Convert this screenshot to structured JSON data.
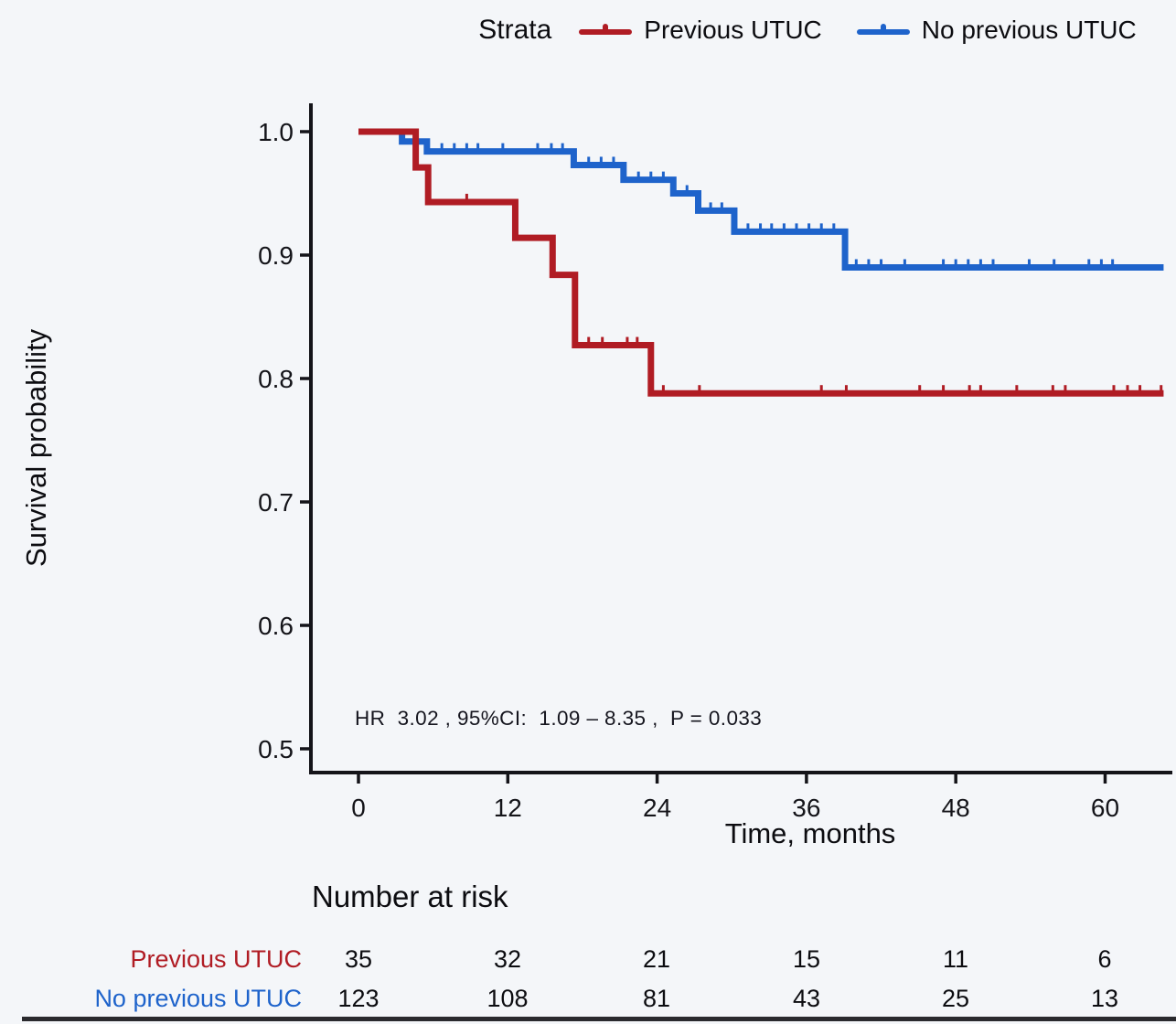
{
  "legend": {
    "title": "Strata",
    "items": [
      {
        "label": "Previous UTUC",
        "color": "#b01c24"
      },
      {
        "label": "No previous UTUC",
        "color": "#1e63cb"
      }
    ]
  },
  "chart_data": {
    "type": "line",
    "subtype": "kaplan-meier-step",
    "xlabel": "Time, months",
    "ylabel": "Survival probability",
    "x_ticks": [
      0,
      12,
      24,
      36,
      48,
      60
    ],
    "y_ticks": [
      "1.0",
      "0.9",
      "0.8",
      "0.7",
      "0.6",
      "0.5"
    ],
    "y_tick_values": [
      1.0,
      0.9,
      0.8,
      0.7,
      0.6,
      0.5
    ],
    "xlim": [
      0,
      64.7
    ],
    "ylim": [
      0.478,
      1.02
    ],
    "grid": false,
    "legend_position": "top",
    "annotation": "HR  3.02 , 95%CI:  1.09 – 8.35 ,  P = 0.033",
    "series": [
      {
        "name": "Previous UTUC",
        "color": "#b01c24",
        "steps": [
          [
            0,
            1.0
          ],
          [
            4.6,
            0.971
          ],
          [
            5.6,
            0.943
          ],
          [
            12.6,
            0.914
          ],
          [
            15.6,
            0.884
          ],
          [
            17.4,
            0.827
          ],
          [
            23.5,
            0.788
          ]
        ],
        "end_time": 64.7,
        "censors": [
          [
            8.7,
            0.943
          ],
          [
            18.5,
            0.827
          ],
          [
            19.6,
            0.827
          ],
          [
            21.6,
            0.827
          ],
          [
            22.4,
            0.827
          ],
          [
            24.5,
            0.788
          ],
          [
            27.4,
            0.788
          ],
          [
            37.2,
            0.788
          ],
          [
            39.2,
            0.788
          ],
          [
            45.1,
            0.788
          ],
          [
            47.0,
            0.788
          ],
          [
            49.1,
            0.788
          ],
          [
            50.0,
            0.788
          ],
          [
            52.9,
            0.788
          ],
          [
            55.8,
            0.788
          ],
          [
            56.8,
            0.788
          ],
          [
            60.7,
            0.788
          ],
          [
            61.8,
            0.788
          ],
          [
            62.8,
            0.788
          ],
          [
            64.5,
            0.788
          ]
        ]
      },
      {
        "name": "No previous UTUC",
        "color": "#1e63cb",
        "steps": [
          [
            0,
            1.0
          ],
          [
            3.5,
            0.992
          ],
          [
            5.5,
            0.984
          ],
          [
            17.3,
            0.973
          ],
          [
            21.3,
            0.961
          ],
          [
            25.3,
            0.95
          ],
          [
            27.3,
            0.936
          ],
          [
            30.2,
            0.919
          ],
          [
            39.1,
            0.89
          ]
        ],
        "end_time": 64.7,
        "censors": [
          [
            6.7,
            0.984
          ],
          [
            7.7,
            0.984
          ],
          [
            8.7,
            0.984
          ],
          [
            9.6,
            0.984
          ],
          [
            11.6,
            0.984
          ],
          [
            14.4,
            0.984
          ],
          [
            15.5,
            0.984
          ],
          [
            16.4,
            0.984
          ],
          [
            18.5,
            0.973
          ],
          [
            19.5,
            0.973
          ],
          [
            20.5,
            0.973
          ],
          [
            22.5,
            0.961
          ],
          [
            23.5,
            0.961
          ],
          [
            24.5,
            0.961
          ],
          [
            26.4,
            0.95
          ],
          [
            28.3,
            0.936
          ],
          [
            29.2,
            0.936
          ],
          [
            31.3,
            0.919
          ],
          [
            32.3,
            0.919
          ],
          [
            33.2,
            0.919
          ],
          [
            34.2,
            0.919
          ],
          [
            35.2,
            0.919
          ],
          [
            36.2,
            0.919
          ],
          [
            37.2,
            0.919
          ],
          [
            38.2,
            0.919
          ],
          [
            40.0,
            0.89
          ],
          [
            41.0,
            0.89
          ],
          [
            42.0,
            0.89
          ],
          [
            43.9,
            0.89
          ],
          [
            47.0,
            0.89
          ],
          [
            48.0,
            0.89
          ],
          [
            49.0,
            0.89
          ],
          [
            50.0,
            0.89
          ],
          [
            51.0,
            0.89
          ],
          [
            53.9,
            0.89
          ],
          [
            55.9,
            0.89
          ],
          [
            58.7,
            0.89
          ],
          [
            59.7,
            0.89
          ],
          [
            60.6,
            0.89
          ]
        ]
      }
    ]
  },
  "risk_table": {
    "title": "Number at risk",
    "time_points": [
      0,
      12,
      24,
      36,
      48,
      60
    ],
    "rows": [
      {
        "label": "Previous UTUC",
        "color": "#b01c24",
        "values": [
          "35",
          "32",
          "21",
          "15",
          "11",
          "6"
        ]
      },
      {
        "label": "No previous UTUC",
        "color": "#1e63cb",
        "values": [
          "123",
          "108",
          "81",
          "43",
          "25",
          "13"
        ]
      }
    ]
  }
}
